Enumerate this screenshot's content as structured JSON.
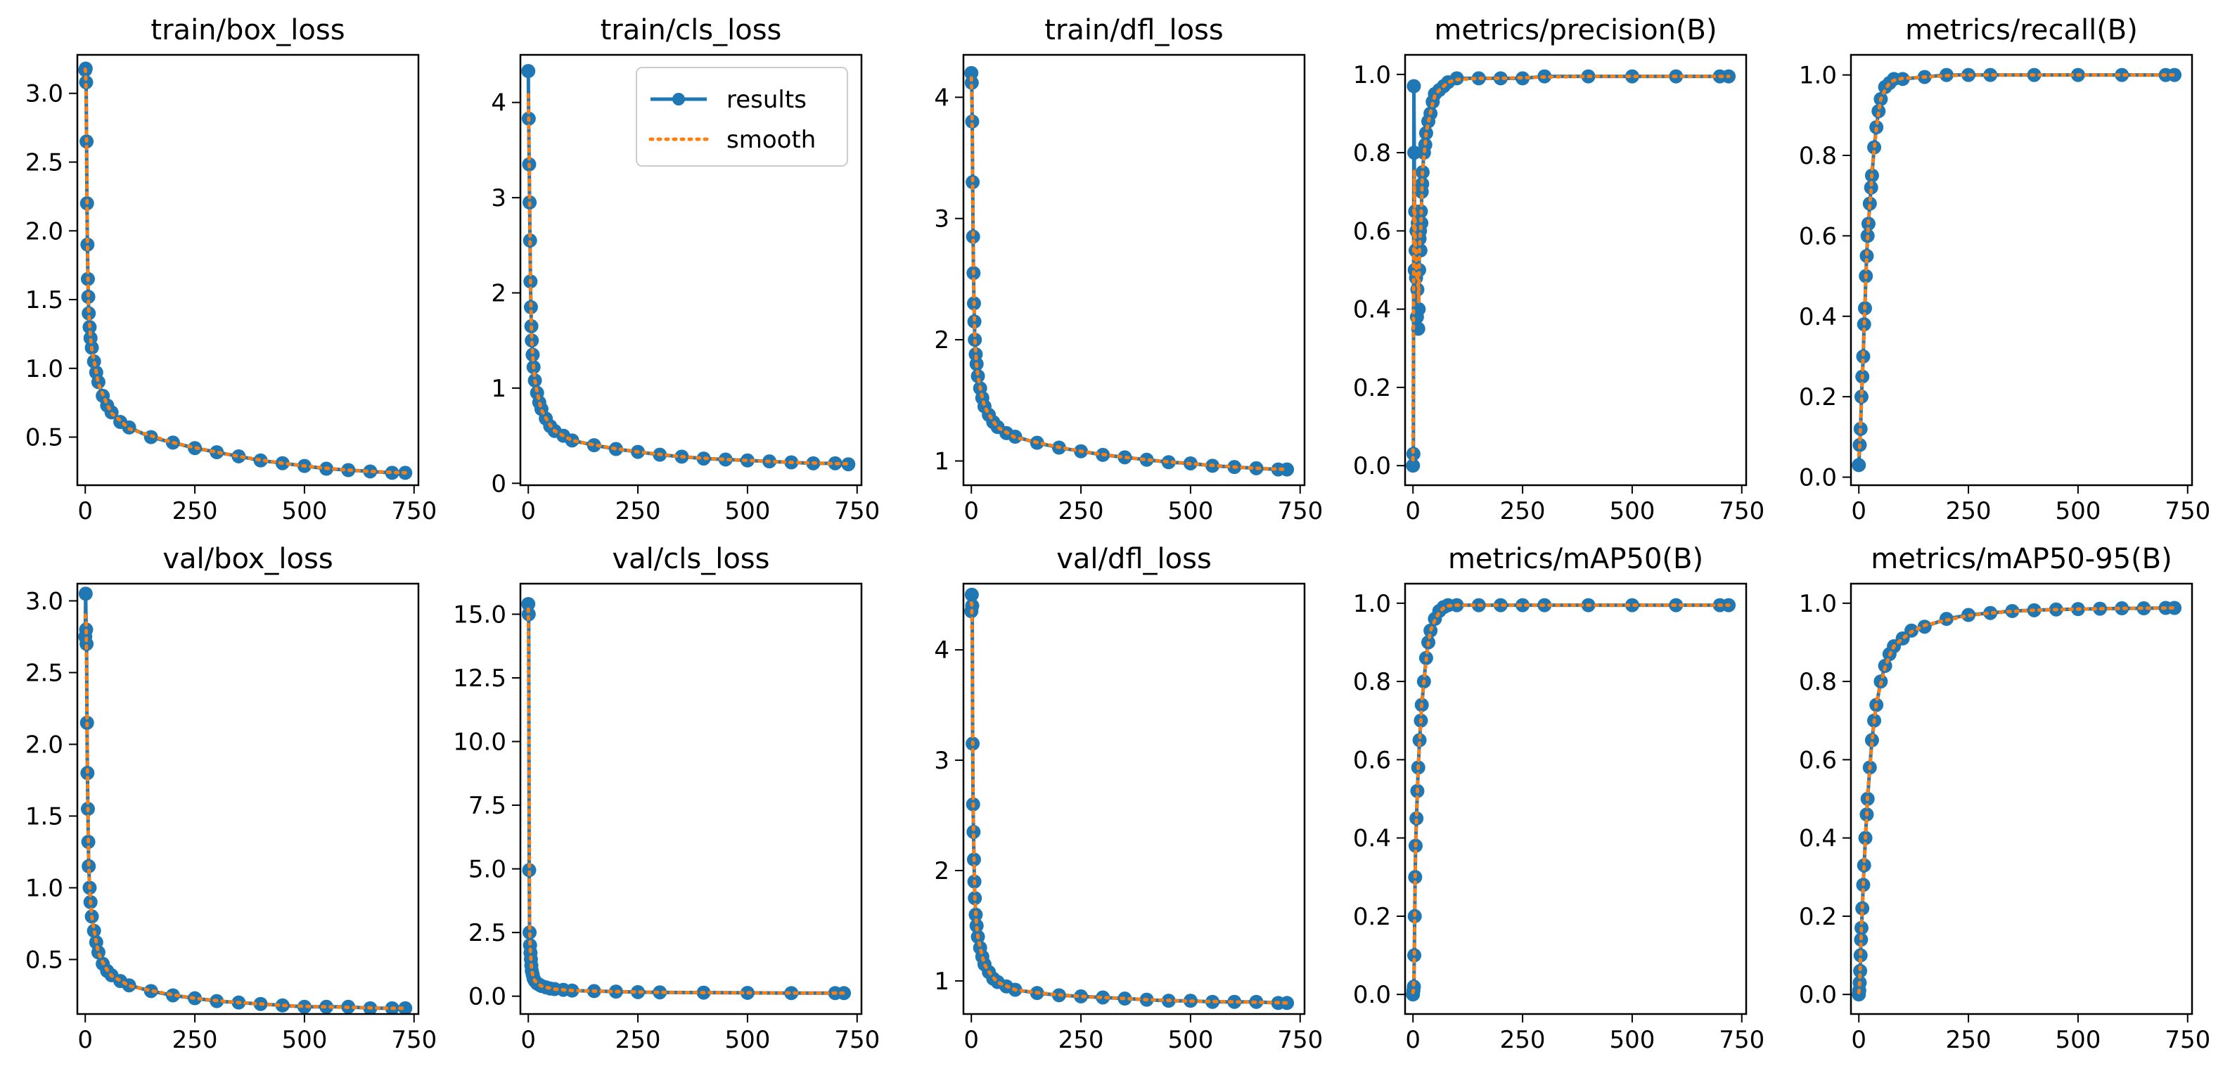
{
  "chart_data": [
    {
      "type": "line",
      "title": "train/box_loss",
      "xlim": [
        -18,
        760
      ],
      "ylim": [
        0.15,
        3.28
      ],
      "xticks": [
        0,
        250,
        500,
        750
      ],
      "yticks": [
        0.5,
        1.0,
        1.5,
        2.0,
        2.5,
        3.0
      ],
      "ytick_labels": [
        "0.5",
        "1.0",
        "1.5",
        "2.0",
        "2.5",
        "3.0"
      ],
      "series": [
        {
          "name": "results",
          "x": [
            0,
            1,
            2,
            3,
            4,
            5,
            6,
            7,
            8,
            10,
            12,
            15,
            20,
            25,
            30,
            40,
            50,
            60,
            80,
            100,
            150,
            200,
            250,
            300,
            350,
            400,
            450,
            500,
            550,
            600,
            650,
            700,
            730
          ],
          "y": [
            3.17,
            3.18,
            3.08,
            2.65,
            2.2,
            1.9,
            1.65,
            1.52,
            1.4,
            1.3,
            1.22,
            1.15,
            1.05,
            0.97,
            0.9,
            0.8,
            0.73,
            0.68,
            0.61,
            0.57,
            0.5,
            0.46,
            0.42,
            0.39,
            0.36,
            0.33,
            0.31,
            0.29,
            0.27,
            0.26,
            0.25,
            0.24,
            0.24
          ]
        }
      ]
    },
    {
      "type": "line",
      "title": "train/cls_loss",
      "xlim": [
        -18,
        760
      ],
      "ylim": [
        -0.02,
        4.5
      ],
      "xticks": [
        0,
        250,
        500,
        750
      ],
      "yticks": [
        0,
        1,
        2,
        3,
        4
      ],
      "ytick_labels": [
        "0",
        "1",
        "2",
        "3",
        "4"
      ],
      "legend": {
        "entries": [
          "results",
          "smooth"
        ],
        "loc": "upper right"
      },
      "series": [
        {
          "name": "results",
          "x": [
            0,
            1,
            2,
            3,
            4,
            5,
            6,
            7,
            8,
            10,
            12,
            15,
            20,
            25,
            30,
            40,
            50,
            60,
            80,
            100,
            150,
            200,
            250,
            300,
            350,
            400,
            450,
            500,
            550,
            600,
            650,
            700,
            730
          ],
          "y": [
            4.33,
            3.83,
            3.35,
            2.95,
            2.55,
            2.12,
            1.85,
            1.65,
            1.5,
            1.35,
            1.22,
            1.08,
            0.95,
            0.85,
            0.78,
            0.68,
            0.6,
            0.55,
            0.5,
            0.45,
            0.4,
            0.36,
            0.33,
            0.3,
            0.28,
            0.26,
            0.25,
            0.24,
            0.23,
            0.22,
            0.21,
            0.21,
            0.2
          ]
        }
      ]
    },
    {
      "type": "line",
      "title": "train/dfl_loss",
      "xlim": [
        -18,
        760
      ],
      "ylim": [
        0.8,
        4.35
      ],
      "xticks": [
        0,
        250,
        500,
        750
      ],
      "yticks": [
        1,
        2,
        3,
        4
      ],
      "ytick_labels": [
        "1",
        "2",
        "3",
        "4"
      ],
      "series": [
        {
          "name": "results",
          "x": [
            0,
            1,
            2,
            3,
            4,
            5,
            6,
            7,
            8,
            10,
            12,
            15,
            20,
            25,
            30,
            40,
            50,
            60,
            80,
            100,
            150,
            200,
            250,
            300,
            350,
            400,
            450,
            500,
            550,
            600,
            650,
            700,
            720
          ],
          "y": [
            4.2,
            4.12,
            3.8,
            3.3,
            2.85,
            2.55,
            2.3,
            2.15,
            2.0,
            1.88,
            1.8,
            1.7,
            1.6,
            1.52,
            1.45,
            1.38,
            1.32,
            1.28,
            1.23,
            1.2,
            1.15,
            1.11,
            1.08,
            1.05,
            1.03,
            1.01,
            0.99,
            0.98,
            0.96,
            0.95,
            0.94,
            0.93,
            0.93
          ]
        }
      ]
    },
    {
      "type": "line",
      "title": "metrics/precision(B)",
      "xlim": [
        -18,
        760
      ],
      "ylim": [
        -0.05,
        1.05
      ],
      "xticks": [
        0,
        250,
        500,
        750
      ],
      "yticks": [
        0.0,
        0.2,
        0.4,
        0.6,
        0.8,
        1.0
      ],
      "ytick_labels": [
        "0.0",
        "0.2",
        "0.4",
        "0.6",
        "0.8",
        "1.0"
      ],
      "series": [
        {
          "name": "results",
          "x": [
            0,
            1,
            2,
            3,
            4,
            5,
            6,
            7,
            8,
            9,
            10,
            11,
            12,
            13,
            14,
            15,
            16,
            17,
            18,
            19,
            20,
            21,
            22,
            25,
            28,
            30,
            35,
            40,
            45,
            50,
            60,
            70,
            80,
            100,
            150,
            200,
            250,
            300,
            400,
            500,
            600,
            700,
            720
          ],
          "y": [
            0.0,
            0.03,
            0.97,
            0.8,
            0.5,
            0.65,
            0.55,
            0.48,
            0.6,
            0.38,
            0.45,
            0.62,
            0.35,
            0.4,
            0.5,
            0.58,
            0.6,
            0.55,
            0.65,
            0.62,
            0.7,
            0.72,
            0.75,
            0.8,
            0.82,
            0.85,
            0.88,
            0.9,
            0.93,
            0.95,
            0.96,
            0.97,
            0.98,
            0.99,
            0.99,
            0.99,
            0.99,
            0.995,
            0.995,
            0.995,
            0.995,
            0.995,
            0.995
          ]
        }
      ]
    },
    {
      "type": "line",
      "title": "metrics/recall(B)",
      "xlim": [
        -18,
        760
      ],
      "ylim": [
        -0.02,
        1.05
      ],
      "xticks": [
        0,
        250,
        500,
        750
      ],
      "yticks": [
        0.0,
        0.2,
        0.4,
        0.6,
        0.8,
        1.0
      ],
      "ytick_labels": [
        "0.0",
        "0.2",
        "0.4",
        "0.6",
        "0.8",
        "1.0"
      ],
      "series": [
        {
          "name": "results",
          "x": [
            0,
            2,
            4,
            6,
            8,
            10,
            12,
            14,
            16,
            18,
            20,
            22,
            25,
            28,
            30,
            35,
            40,
            45,
            50,
            60,
            70,
            80,
            100,
            150,
            200,
            250,
            300,
            400,
            500,
            600,
            700,
            720
          ],
          "y": [
            0.03,
            0.08,
            0.12,
            0.2,
            0.25,
            0.3,
            0.38,
            0.42,
            0.5,
            0.55,
            0.6,
            0.63,
            0.68,
            0.72,
            0.75,
            0.82,
            0.87,
            0.91,
            0.94,
            0.97,
            0.98,
            0.99,
            0.99,
            0.995,
            1.0,
            1.0,
            1.0,
            1.0,
            1.0,
            1.0,
            1.0,
            1.0
          ]
        }
      ]
    },
    {
      "type": "line",
      "title": "val/box_loss",
      "xlim": [
        -18,
        760
      ],
      "ylim": [
        0.12,
        3.12
      ],
      "xticks": [
        0,
        250,
        500,
        750
      ],
      "yticks": [
        0.5,
        1.0,
        1.5,
        2.0,
        2.5,
        3.0
      ],
      "ytick_labels": [
        "0.5",
        "1.0",
        "1.5",
        "2.0",
        "2.5",
        "3.0"
      ],
      "series": [
        {
          "name": "results",
          "x": [
            0,
            1,
            2,
            3,
            4,
            5,
            6,
            7,
            8,
            10,
            12,
            15,
            20,
            25,
            30,
            40,
            50,
            60,
            80,
            100,
            150,
            200,
            250,
            300,
            350,
            400,
            450,
            500,
            550,
            600,
            650,
            700,
            730
          ],
          "y": [
            2.75,
            3.05,
            2.8,
            2.7,
            2.15,
            1.8,
            1.55,
            1.32,
            1.15,
            1.0,
            0.9,
            0.8,
            0.7,
            0.62,
            0.55,
            0.47,
            0.42,
            0.39,
            0.35,
            0.32,
            0.28,
            0.25,
            0.23,
            0.21,
            0.2,
            0.19,
            0.18,
            0.17,
            0.17,
            0.17,
            0.16,
            0.16,
            0.16
          ]
        }
      ]
    },
    {
      "type": "line",
      "title": "val/cls_loss",
      "xlim": [
        -18,
        760
      ],
      "ylim": [
        -0.7,
        16.2
      ],
      "xticks": [
        0,
        250,
        500,
        750
      ],
      "yticks": [
        0.0,
        2.5,
        5.0,
        7.5,
        10.0,
        12.5,
        15.0
      ],
      "ytick_labels": [
        "0.0",
        "2.5",
        "5.0",
        "7.5",
        "10.0",
        "12.5",
        "15.0"
      ],
      "series": [
        {
          "name": "results",
          "x": [
            0,
            1,
            2,
            3,
            4,
            5,
            6,
            7,
            8,
            10,
            12,
            15,
            20,
            25,
            30,
            40,
            50,
            60,
            80,
            100,
            150,
            200,
            250,
            300,
            400,
            500,
            600,
            700,
            720
          ],
          "y": [
            15.4,
            15.0,
            4.95,
            2.5,
            2.0,
            1.7,
            1.45,
            1.2,
            1.0,
            0.85,
            0.7,
            0.6,
            0.5,
            0.45,
            0.4,
            0.35,
            0.3,
            0.28,
            0.25,
            0.22,
            0.2,
            0.18,
            0.16,
            0.15,
            0.14,
            0.13,
            0.12,
            0.12,
            0.12
          ]
        }
      ]
    },
    {
      "type": "line",
      "title": "val/dfl_loss",
      "xlim": [
        -18,
        760
      ],
      "ylim": [
        0.7,
        4.6
      ],
      "xticks": [
        0,
        250,
        500,
        750
      ],
      "yticks": [
        1,
        2,
        3,
        4
      ],
      "ytick_labels": [
        "1",
        "2",
        "3",
        "4"
      ],
      "series": [
        {
          "name": "results",
          "x": [
            0,
            1,
            2,
            3,
            4,
            5,
            6,
            7,
            8,
            10,
            12,
            15,
            20,
            25,
            30,
            40,
            50,
            60,
            80,
            100,
            150,
            200,
            250,
            300,
            350,
            400,
            450,
            500,
            550,
            600,
            650,
            700,
            720
          ],
          "y": [
            4.35,
            4.5,
            4.4,
            3.15,
            2.6,
            2.35,
            2.1,
            1.9,
            1.75,
            1.6,
            1.5,
            1.4,
            1.3,
            1.22,
            1.15,
            1.08,
            1.02,
            0.99,
            0.95,
            0.92,
            0.89,
            0.87,
            0.86,
            0.85,
            0.84,
            0.83,
            0.82,
            0.82,
            0.81,
            0.81,
            0.81,
            0.8,
            0.8
          ]
        }
      ]
    },
    {
      "type": "line",
      "title": "metrics/mAP50(B)",
      "xlim": [
        -18,
        760
      ],
      "ylim": [
        -0.05,
        1.05
      ],
      "xticks": [
        0,
        250,
        500,
        750
      ],
      "yticks": [
        0.0,
        0.2,
        0.4,
        0.6,
        0.8,
        1.0
      ],
      "ytick_labels": [
        "0.0",
        "0.2",
        "0.4",
        "0.6",
        "0.8",
        "1.0"
      ],
      "series": [
        {
          "name": "results",
          "x": [
            0,
            1,
            2,
            3,
            4,
            5,
            6,
            8,
            10,
            12,
            15,
            18,
            20,
            25,
            30,
            35,
            40,
            50,
            60,
            70,
            80,
            100,
            150,
            200,
            250,
            300,
            400,
            500,
            600,
            700,
            720
          ],
          "y": [
            0.0,
            0.01,
            0.02,
            0.1,
            0.2,
            0.3,
            0.38,
            0.45,
            0.52,
            0.58,
            0.65,
            0.7,
            0.74,
            0.8,
            0.86,
            0.9,
            0.93,
            0.96,
            0.98,
            0.99,
            0.995,
            0.995,
            0.995,
            0.995,
            0.995,
            0.995,
            0.995,
            0.995,
            0.995,
            0.995,
            0.995
          ]
        }
      ]
    },
    {
      "type": "line",
      "title": "metrics/mAP50-95(B)",
      "xlim": [
        -18,
        760
      ],
      "ylim": [
        -0.05,
        1.05
      ],
      "xticks": [
        0,
        250,
        500,
        750
      ],
      "yticks": [
        0.0,
        0.2,
        0.4,
        0.6,
        0.8,
        1.0
      ],
      "ytick_labels": [
        "0.0",
        "0.2",
        "0.4",
        "0.6",
        "0.8",
        "1.0"
      ],
      "series": [
        {
          "name": "results",
          "x": [
            0,
            1,
            2,
            3,
            4,
            5,
            6,
            8,
            10,
            12,
            15,
            18,
            20,
            25,
            30,
            35,
            40,
            50,
            60,
            70,
            80,
            100,
            120,
            150,
            200,
            250,
            300,
            350,
            400,
            450,
            500,
            550,
            600,
            650,
            700,
            720
          ],
          "y": [
            0.0,
            0.01,
            0.03,
            0.06,
            0.1,
            0.14,
            0.17,
            0.22,
            0.28,
            0.33,
            0.4,
            0.46,
            0.5,
            0.58,
            0.65,
            0.7,
            0.74,
            0.8,
            0.84,
            0.87,
            0.89,
            0.91,
            0.93,
            0.94,
            0.96,
            0.97,
            0.975,
            0.98,
            0.982,
            0.984,
            0.985,
            0.986,
            0.987,
            0.987,
            0.988,
            0.988
          ]
        }
      ]
    }
  ]
}
